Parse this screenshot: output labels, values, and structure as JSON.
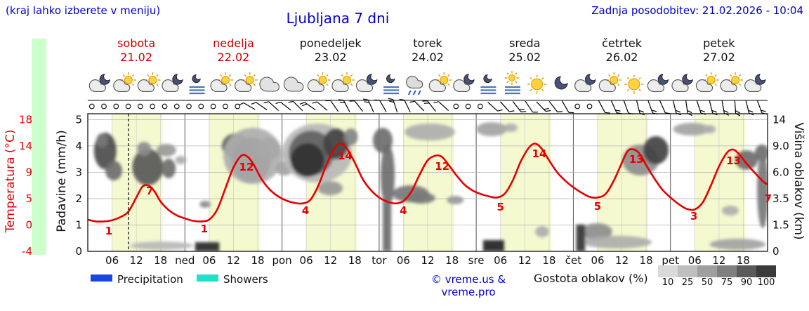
{
  "header": {
    "hint": "(kraj lahko izberete v meniju)",
    "title": "Ljubljana 7 dni",
    "updated": "Zadnja posodobitev: 21.02.2026 - 10:04"
  },
  "axes": {
    "temp_label": "Temperatura (°C)",
    "precip_label": "Padavine (mm/h)",
    "cloud_label": "Višina oblakov (km)",
    "temp_ticks": [
      "18",
      "14",
      "9",
      "5",
      "0",
      "-4"
    ],
    "precip_ticks": [
      "5",
      "4",
      "3",
      "2",
      "1",
      "0"
    ],
    "cloud_ticks": [
      "14",
      "9.0",
      "6.0",
      "3.5",
      "1.5",
      "0"
    ]
  },
  "days": [
    {
      "name": "sobota",
      "date": "21.02",
      "highlight": true
    },
    {
      "name": "nedelja",
      "date": "22.02",
      "highlight": true
    },
    {
      "name": "ponedeljek",
      "date": "23.02",
      "highlight": false
    },
    {
      "name": "torek",
      "date": "24.02",
      "highlight": false
    },
    {
      "name": "sreda",
      "date": "25.02",
      "highlight": false
    },
    {
      "name": "četrtek",
      "date": "26.02",
      "highlight": false
    },
    {
      "name": "petek",
      "date": "27.02",
      "highlight": false
    }
  ],
  "legend": {
    "precipitation": "Precipitation",
    "showers": "Showers",
    "copyright": "© vreme.us & vreme.pro",
    "cloud_density": "Gostota oblakov (%)",
    "gray_labels": [
      "10",
      "25",
      "50",
      "75",
      "90",
      "100"
    ],
    "gray_colors": [
      "#d9d9d9",
      "#bfbfbf",
      "#9f9f9f",
      "#7f7f7f",
      "#5a5a5a",
      "#3a3a3a"
    ]
  },
  "colors": {
    "accent_blue": "#0000cc",
    "temp_red": "#e60000",
    "day_red": "#cc0000",
    "dayband": "#f5f9cf",
    "green_strip": "#ccffcc",
    "precip_blue": "#1a46e0",
    "showers_cyan": "#22dfc8",
    "fog_blue": "#4a78b5",
    "sun_yellow": "#ffd23d",
    "moon_fill": "#46527c",
    "cloud_fill": "#ececec"
  },
  "chart_data": {
    "type": "meteogram",
    "location": "Ljubljana",
    "days_count": 7,
    "now_line_hour": 10.07,
    "x_ticks": [
      {
        "h": 6,
        "l": "06"
      },
      {
        "h": 12,
        "l": "12"
      },
      {
        "h": 18,
        "l": "18"
      },
      {
        "h": 24,
        "l": "ned"
      },
      {
        "h": 30,
        "l": "06"
      },
      {
        "h": 36,
        "l": "12"
      },
      {
        "h": 42,
        "l": "18"
      },
      {
        "h": 48,
        "l": "pon"
      },
      {
        "h": 54,
        "l": "06"
      },
      {
        "h": 60,
        "l": "12"
      },
      {
        "h": 66,
        "l": "18"
      },
      {
        "h": 72,
        "l": "tor"
      },
      {
        "h": 78,
        "l": "06"
      },
      {
        "h": 84,
        "l": "12"
      },
      {
        "h": 90,
        "l": "18"
      },
      {
        "h": 96,
        "l": "sre"
      },
      {
        "h": 102,
        "l": "06"
      },
      {
        "h": 108,
        "l": "12"
      },
      {
        "h": 114,
        "l": "18"
      },
      {
        "h": 120,
        "l": "čet"
      },
      {
        "h": 126,
        "l": "06"
      },
      {
        "h": 132,
        "l": "12"
      },
      {
        "h": 138,
        "l": "18"
      },
      {
        "h": 144,
        "l": "pet"
      },
      {
        "h": 150,
        "l": "06"
      },
      {
        "h": 156,
        "l": "12"
      },
      {
        "h": 162,
        "l": "18"
      }
    ],
    "temperature": {
      "unit": "°C",
      "series": [
        [
          0,
          1.3
        ],
        [
          2,
          1.0
        ],
        [
          4,
          1.0
        ],
        [
          6,
          1.2
        ],
        [
          8,
          1.7
        ],
        [
          10,
          2.6
        ],
        [
          12,
          5.0
        ],
        [
          13.5,
          6.8
        ],
        [
          15,
          7.0
        ],
        [
          16.5,
          6.0
        ],
        [
          18,
          4.3
        ],
        [
          20,
          2.9
        ],
        [
          22,
          2.0
        ],
        [
          24,
          1.5
        ],
        [
          26,
          1.1
        ],
        [
          28,
          1.0
        ],
        [
          30,
          1.3
        ],
        [
          32,
          3.0
        ],
        [
          34,
          6.5
        ],
        [
          36,
          10.0
        ],
        [
          38,
          12.0
        ],
        [
          39.5,
          11.8
        ],
        [
          41,
          10.5
        ],
        [
          43,
          8.0
        ],
        [
          45,
          6.3
        ],
        [
          47,
          5.2
        ],
        [
          49,
          4.5
        ],
        [
          51,
          4.1
        ],
        [
          53,
          4.0
        ],
        [
          55,
          4.6
        ],
        [
          57,
          7.0
        ],
        [
          59,
          10.5
        ],
        [
          61,
          13.2
        ],
        [
          62.5,
          14.0
        ],
        [
          64,
          13.2
        ],
        [
          66,
          10.8
        ],
        [
          68,
          8.0
        ],
        [
          70,
          6.2
        ],
        [
          72,
          5.0
        ],
        [
          74,
          4.3
        ],
        [
          76,
          4.0
        ],
        [
          78,
          4.4
        ],
        [
          80,
          6.0
        ],
        [
          82,
          8.8
        ],
        [
          84,
          11.2
        ],
        [
          86,
          12.0
        ],
        [
          87.5,
          11.8
        ],
        [
          89,
          10.6
        ],
        [
          91,
          8.8
        ],
        [
          93,
          7.2
        ],
        [
          95,
          6.2
        ],
        [
          97,
          5.6
        ],
        [
          99,
          5.2
        ],
        [
          101,
          5.0
        ],
        [
          103,
          5.6
        ],
        [
          105,
          7.8
        ],
        [
          107,
          11.0
        ],
        [
          109,
          13.3
        ],
        [
          110.5,
          14.0
        ],
        [
          112,
          13.3
        ],
        [
          114,
          11.2
        ],
        [
          116,
          9.2
        ],
        [
          118,
          7.8
        ],
        [
          120,
          6.7
        ],
        [
          122,
          5.8
        ],
        [
          124,
          5.1
        ],
        [
          126,
          5.0
        ],
        [
          128,
          5.6
        ],
        [
          130,
          7.8
        ],
        [
          132,
          10.8
        ],
        [
          133.5,
          12.8
        ],
        [
          135,
          13.0
        ],
        [
          136.5,
          12.2
        ],
        [
          138,
          10.4
        ],
        [
          140,
          8.2
        ],
        [
          142,
          6.3
        ],
        [
          144,
          5.0
        ],
        [
          146,
          3.9
        ],
        [
          148,
          3.1
        ],
        [
          150,
          3.0
        ],
        [
          152,
          4.2
        ],
        [
          154,
          7.0
        ],
        [
          156,
          10.2
        ],
        [
          158,
          12.5
        ],
        [
          159.5,
          13.0
        ],
        [
          161,
          12.2
        ],
        [
          163,
          10.5
        ],
        [
          165,
          9.0
        ],
        [
          167,
          7.6
        ],
        [
          168,
          7.2
        ]
      ],
      "max_labels": [
        {
          "h": 15.3,
          "v": "7",
          "y": 277
        },
        {
          "h": 39.2,
          "v": "12",
          "y": 243
        },
        {
          "h": 63.6,
          "v": "14",
          "y": 227
        },
        {
          "h": 87.6,
          "v": "12",
          "y": 242
        },
        {
          "h": 111.6,
          "v": "14",
          "y": 224
        },
        {
          "h": 135.6,
          "v": "13",
          "y": 232
        },
        {
          "h": 159.6,
          "v": "13",
          "y": 234
        }
      ],
      "min_labels": [
        {
          "h": 5.2,
          "v": "1",
          "y": 334
        },
        {
          "h": 28.8,
          "v": "1",
          "y": 331
        },
        {
          "h": 53.8,
          "v": "4",
          "y": 305
        },
        {
          "h": 78.0,
          "v": "4",
          "y": 305
        },
        {
          "h": 102.0,
          "v": "5",
          "y": 300
        },
        {
          "h": 126.0,
          "v": "5",
          "y": 299
        },
        {
          "h": 149.8,
          "v": "3",
          "y": 313
        }
      ],
      "end_label": {
        "v": "7",
        "x": 1099,
        "y": 288
      }
    },
    "clouds": [
      [
        4.3,
        215,
        16,
        26,
        75
      ],
      [
        6.4,
        243,
        12,
        14,
        60
      ],
      [
        3.5,
        200,
        8,
        10,
        55
      ],
      [
        14.8,
        238,
        22,
        26,
        70
      ],
      [
        13.9,
        212,
        10,
        10,
        45
      ],
      [
        19.4,
        214,
        14,
        9,
        40
      ],
      [
        20,
        240,
        10,
        14,
        60
      ],
      [
        23,
        228,
        8,
        6,
        30
      ],
      [
        29,
        291,
        8,
        5,
        45
      ],
      [
        18.2,
        350,
        45,
        6,
        25
      ],
      [
        36.6,
        208,
        20,
        18,
        65
      ],
      [
        40.4,
        228,
        28,
        32,
        85
      ],
      [
        44.8,
        212,
        16,
        16,
        60
      ],
      [
        40.8,
        222,
        42,
        40,
        30
      ],
      [
        48.6,
        240,
        12,
        10,
        35
      ],
      [
        56.7,
        218,
        50,
        42,
        25
      ],
      [
        55.2,
        218,
        32,
        32,
        65
      ],
      [
        54.3,
        228,
        24,
        24,
        88
      ],
      [
        61.3,
        205,
        18,
        22,
        80
      ],
      [
        59.9,
        268,
        18,
        10,
        40
      ],
      [
        65,
        195,
        10,
        12,
        50
      ],
      [
        72.9,
        200,
        14,
        18,
        60
      ],
      [
        74.1,
        250,
        10,
        45,
        60
      ],
      [
        79.8,
        276,
        26,
        12,
        55
      ],
      [
        84.5,
        188,
        36,
        12,
        30
      ],
      [
        82.4,
        282,
        20,
        8,
        55
      ],
      [
        90.8,
        285,
        12,
        6,
        40
      ],
      [
        99.8,
        184,
        22,
        10,
        35
      ],
      [
        104.5,
        182,
        10,
        6,
        30
      ],
      [
        112.3,
        330,
        10,
        8,
        30
      ],
      [
        125.8,
        330,
        22,
        12,
        45
      ],
      [
        130.7,
        345,
        50,
        9,
        30
      ],
      [
        136.6,
        228,
        26,
        22,
        45
      ],
      [
        140.4,
        214,
        18,
        20,
        80
      ],
      [
        149.2,
        184,
        26,
        9,
        35
      ],
      [
        153.6,
        184,
        9,
        6,
        30
      ],
      [
        158.8,
        300,
        12,
        7,
        30
      ],
      [
        162.8,
        228,
        16,
        14,
        60
      ],
      [
        166.6,
        218,
        10,
        12,
        60
      ],
      [
        166.8,
        270,
        8,
        55,
        55
      ],
      [
        160.6,
        348,
        40,
        8,
        35
      ]
    ],
    "dark_bars": [
      [
        26.5,
        32.5,
        345,
        358,
        85
      ],
      [
        72.9,
        75.0,
        285,
        358,
        55
      ],
      [
        97.7,
        102.9,
        342,
        358,
        88
      ],
      [
        120.7,
        122.9,
        320,
        358,
        80
      ]
    ],
    "icons": [
      "cloud-moon",
      "sun-cloud",
      "sun-cloud",
      "cloud-moon",
      "fog-night",
      "sun-cloud",
      "sun-cloud",
      "cloud",
      "cloud",
      "sun-cloud",
      "sun-cloud",
      "cloud-moon",
      "fog-night",
      "cloud-rain",
      "sun-cloud",
      "cloud-moon",
      "fog-night",
      "fog-sun",
      "sun",
      "moon",
      "cloud-moon",
      "sun-cloud",
      "sun",
      "cloud-moon",
      "cloud-moon",
      "sun-cloud",
      "sun-cloud",
      "cloud-moon"
    ],
    "wind": [
      {
        "h": 1,
        "t": "c"
      },
      {
        "h": 4,
        "t": "c"
      },
      {
        "h": 7,
        "t": "c"
      },
      {
        "h": 10,
        "t": "c"
      },
      {
        "h": 13,
        "t": "c"
      },
      {
        "h": 16,
        "t": "c"
      },
      {
        "h": 19,
        "t": "c"
      },
      {
        "h": 22,
        "t": "c"
      },
      {
        "h": 25,
        "t": "c"
      },
      {
        "h": 28,
        "t": "c"
      },
      {
        "h": 31,
        "t": "c"
      },
      {
        "h": 34,
        "t": "c"
      },
      {
        "h": 37,
        "t": "c"
      },
      {
        "h": 40,
        "t": "b",
        "a": 210,
        "n": 1
      },
      {
        "h": 43,
        "t": "b",
        "a": 215,
        "n": 1
      },
      {
        "h": 46,
        "t": "b",
        "a": 222,
        "n": 1
      },
      {
        "h": 49,
        "t": "b",
        "a": 218,
        "n": 1
      },
      {
        "h": 52,
        "t": "b",
        "a": 225,
        "n": 1
      },
      {
        "h": 55,
        "t": "b",
        "a": 215,
        "n": 2
      },
      {
        "h": 58,
        "t": "b",
        "a": 220,
        "n": 1
      },
      {
        "h": 61,
        "t": "b",
        "a": 235,
        "n": 1
      },
      {
        "h": 64,
        "t": "b",
        "a": 242,
        "n": 2
      },
      {
        "h": 67,
        "t": "b",
        "a": 232,
        "n": 1
      },
      {
        "h": 70,
        "t": "b",
        "a": 246,
        "n": 2
      },
      {
        "h": 73,
        "t": "b",
        "a": 240,
        "n": 1
      },
      {
        "h": 76,
        "t": "b",
        "a": 252,
        "n": 2
      },
      {
        "h": 79,
        "t": "b",
        "a": 244,
        "n": 1
      },
      {
        "h": 82,
        "t": "b",
        "a": 226,
        "n": 1
      },
      {
        "h": 85,
        "t": "b",
        "a": 232,
        "n": 2
      },
      {
        "h": 88,
        "t": "b",
        "a": 222,
        "n": 1
      },
      {
        "h": 91,
        "t": "c"
      },
      {
        "h": 94,
        "t": "c"
      },
      {
        "h": 97,
        "t": "c"
      },
      {
        "h": 100,
        "t": "b",
        "a": 42,
        "n": 1
      },
      {
        "h": 103,
        "t": "b",
        "a": 48,
        "n": 1
      },
      {
        "h": 106,
        "t": "b",
        "a": 52,
        "n": 2
      },
      {
        "h": 109,
        "t": "b",
        "a": 56,
        "n": 1
      },
      {
        "h": 112,
        "t": "b",
        "a": 46,
        "n": 2
      },
      {
        "h": 115,
        "t": "b",
        "a": 52,
        "n": 1
      },
      {
        "h": 118,
        "t": "b",
        "a": 60,
        "n": 1
      },
      {
        "h": 121,
        "t": "c"
      },
      {
        "h": 124,
        "t": "c"
      },
      {
        "h": 127,
        "t": "b",
        "a": 62,
        "n": 1
      },
      {
        "h": 130,
        "t": "b",
        "a": 66,
        "n": 2
      },
      {
        "h": 133,
        "t": "b",
        "a": 70,
        "n": 1
      },
      {
        "h": 136,
        "t": "b",
        "a": 76,
        "n": 2
      },
      {
        "h": 139,
        "t": "b",
        "a": 70,
        "n": 2
      },
      {
        "h": 142,
        "t": "b",
        "a": 66,
        "n": 1
      },
      {
        "h": 145,
        "t": "b",
        "a": 76,
        "n": 2
      },
      {
        "h": 148,
        "t": "b",
        "a": 82,
        "n": 2
      },
      {
        "h": 151,
        "t": "b",
        "a": 72,
        "n": 2
      },
      {
        "h": 154,
        "t": "b",
        "a": 76,
        "n": 2
      },
      {
        "h": 157,
        "t": "b",
        "a": 80,
        "n": 2
      },
      {
        "h": 160,
        "t": "b",
        "a": 86,
        "n": 2
      },
      {
        "h": 163,
        "t": "b",
        "a": 76,
        "n": 2
      },
      {
        "h": 166,
        "t": "b",
        "a": 70,
        "n": 2
      }
    ]
  }
}
